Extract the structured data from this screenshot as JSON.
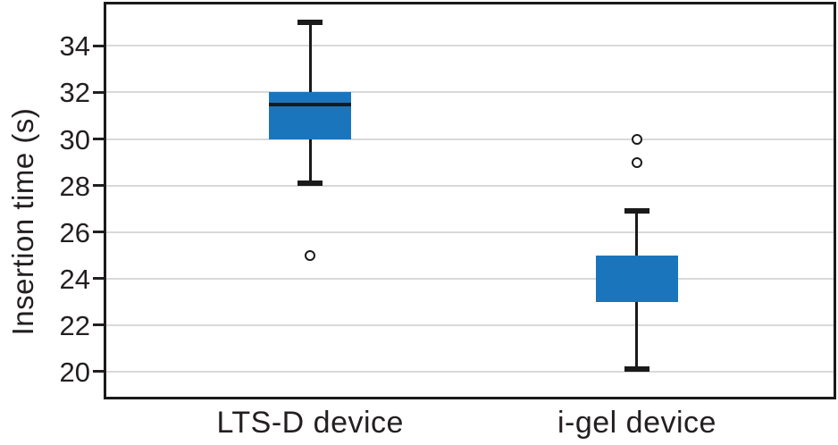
{
  "chart_data": {
    "type": "boxplot",
    "title": "",
    "ylabel": "Insertion time (s)",
    "xlabel": "",
    "categories": [
      "LTS-D device",
      "i-gel device"
    ],
    "yticks": [
      20,
      22,
      24,
      26,
      28,
      30,
      32,
      34
    ],
    "ylim": [
      18.8,
      35.9
    ],
    "grid": "horizontal",
    "legend_position": "none",
    "series": [
      {
        "name": "LTS-D device",
        "whisker_low": 28.1,
        "q1": 30,
        "median": 31.5,
        "q3": 32,
        "whisker_high": 35,
        "outliers": [
          25
        ]
      },
      {
        "name": "i-gel device",
        "whisker_low": 20.1,
        "q1": 23,
        "median": null,
        "q3": 25,
        "whisker_high": 26.9,
        "outliers": [
          29,
          30
        ]
      }
    ],
    "colors": {
      "box_fill": "#1b75bc",
      "line": "#1a1a1a",
      "text": "#231f20",
      "grid": "#d9d9d9",
      "background": "#ffffff"
    }
  }
}
